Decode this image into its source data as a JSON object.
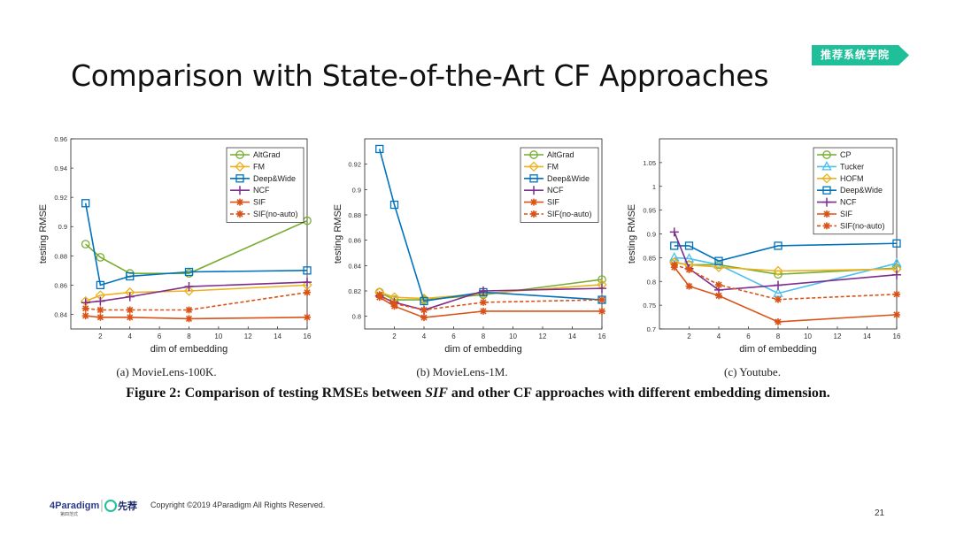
{
  "header": {
    "title": "Comparison with State-of-the-Art CF Approaches",
    "badge": "推荐系统学院",
    "badge_color": "#1fbf99"
  },
  "figure_caption": {
    "prefix": "Figure 2: Comparison of testing RMSEs between ",
    "italic": "SIF",
    "suffix": " and other CF approaches with different embedding dimension."
  },
  "footer": {
    "logo_text": "4Paradigm",
    "logo_sub": "第四范式",
    "logo2_text": "先荐",
    "copyright": "Copyright ©2019 4Paradigm All Rights Reserved.",
    "page_number": "21"
  },
  "colors": {
    "AltGrad": "#77ac30",
    "FM": "#edb120",
    "Deep&Wide": "#0072bd",
    "NCF": "#7e2f8e",
    "SIF": "#d95319",
    "SIF(no-auto)": "#d95319",
    "CP": "#77ac30",
    "Tucker": "#4dbeee",
    "HOFM": "#edb120"
  },
  "chart_data": [
    {
      "type": "line",
      "caption": "(a)  MovieLens-100K.",
      "xlabel": "dim of embedding",
      "ylabel": "testing RMSE",
      "xlim": [
        0,
        16
      ],
      "ylim": [
        0.83,
        0.96
      ],
      "xticks": [
        2,
        4,
        6,
        8,
        10,
        12,
        14,
        16
      ],
      "yticks": [
        0.84,
        0.86,
        0.88,
        0.9,
        0.92,
        0.94,
        0.96
      ],
      "ytick_labels": [
        "0.84",
        "0.86",
        "0.88",
        "0.9",
        "0.92",
        "0.94",
        "0.96"
      ],
      "legend_position": "top-right",
      "x": [
        1,
        2,
        4,
        8,
        16
      ],
      "series": [
        {
          "name": "AltGrad",
          "values": [
            0.888,
            0.879,
            0.868,
            0.868,
            0.904
          ],
          "marker": "circle",
          "dash": false
        },
        {
          "name": "FM",
          "values": [
            0.849,
            0.853,
            0.855,
            0.856,
            0.86
          ],
          "marker": "diamond",
          "dash": false
        },
        {
          "name": "Deep&Wide",
          "values": [
            0.916,
            0.86,
            0.866,
            0.869,
            0.87
          ],
          "marker": "square",
          "dash": false
        },
        {
          "name": "NCF",
          "values": [
            0.848,
            0.849,
            0.852,
            0.859,
            0.862
          ],
          "marker": "plus",
          "dash": false
        },
        {
          "name": "SIF",
          "values": [
            0.839,
            0.838,
            0.838,
            0.837,
            0.838
          ],
          "marker": "star",
          "dash": false
        },
        {
          "name": "SIF(no-auto)",
          "values": [
            0.844,
            0.843,
            0.843,
            0.843,
            0.855
          ],
          "marker": "star",
          "dash": true
        }
      ]
    },
    {
      "type": "line",
      "caption": "(b)  MovieLens-1M.",
      "xlabel": "dim of embedding",
      "ylabel": "testing RMSE",
      "xlim": [
        0,
        16
      ],
      "ylim": [
        0.79,
        0.94
      ],
      "xticks": [
        2,
        4,
        6,
        8,
        10,
        12,
        14,
        16
      ],
      "yticks": [
        0.8,
        0.82,
        0.84,
        0.86,
        0.88,
        0.9,
        0.92
      ],
      "ytick_labels": [
        "0.8",
        "0.82",
        "0.84",
        "0.86",
        "0.88",
        "0.9",
        "0.92"
      ],
      "legend_position": "top-right",
      "x": [
        1,
        2,
        4,
        8,
        16
      ],
      "series": [
        {
          "name": "AltGrad",
          "values": [
            0.819,
            0.813,
            0.813,
            0.817,
            0.829
          ],
          "marker": "circle",
          "dash": false
        },
        {
          "name": "FM",
          "values": [
            0.819,
            0.815,
            0.814,
            0.818,
            0.825
          ],
          "marker": "diamond",
          "dash": false
        },
        {
          "name": "Deep&Wide",
          "values": [
            0.932,
            0.888,
            0.812,
            0.819,
            0.813
          ],
          "marker": "square",
          "dash": false
        },
        {
          "name": "NCF",
          "values": [
            0.816,
            0.811,
            0.805,
            0.82,
            0.822
          ],
          "marker": "plus",
          "dash": false
        },
        {
          "name": "SIF",
          "values": [
            0.815,
            0.808,
            0.799,
            0.804,
            0.804
          ],
          "marker": "star",
          "dash": false
        },
        {
          "name": "SIF(no-auto)",
          "values": [
            0.817,
            0.81,
            0.805,
            0.811,
            0.813
          ],
          "marker": "star",
          "dash": true
        }
      ]
    },
    {
      "type": "line",
      "caption": "(c)  Youtube.",
      "xlabel": "dim of embedding",
      "ylabel": "testing RMSE",
      "xlim": [
        0,
        16
      ],
      "ylim": [
        0.7,
        1.1
      ],
      "xticks": [
        2,
        4,
        6,
        8,
        10,
        12,
        14,
        16
      ],
      "yticks": [
        0.7,
        0.75,
        0.8,
        0.85,
        0.9,
        0.95,
        1,
        1.05
      ],
      "ytick_labels": [
        "0.7",
        "0.75",
        "0.8",
        "0.85",
        "0.9",
        "0.95",
        "1",
        "1.05"
      ],
      "legend_position": "top-right",
      "x": [
        1,
        2,
        4,
        8,
        16
      ],
      "series": [
        {
          "name": "CP",
          "values": [
            0.84,
            0.835,
            0.835,
            0.815,
            0.828
          ],
          "marker": "circle",
          "dash": false
        },
        {
          "name": "Tucker",
          "values": [
            0.85,
            0.848,
            0.835,
            0.775,
            0.838
          ],
          "marker": "triangle",
          "dash": false
        },
        {
          "name": "HOFM",
          "values": [
            0.84,
            0.835,
            0.83,
            0.822,
            0.826
          ],
          "marker": "diamond",
          "dash": false
        },
        {
          "name": "Deep&Wide",
          "values": [
            0.875,
            0.875,
            0.843,
            0.875,
            0.88
          ],
          "marker": "square",
          "dash": false
        },
        {
          "name": "NCF",
          "values": [
            0.904,
            0.827,
            0.782,
            0.792,
            0.814
          ],
          "marker": "plus",
          "dash": false
        },
        {
          "name": "SIF",
          "values": [
            0.83,
            0.79,
            0.77,
            0.715,
            0.73
          ],
          "marker": "star",
          "dash": false
        },
        {
          "name": "SIF(no-auto)",
          "values": [
            0.835,
            0.825,
            0.793,
            0.762,
            0.773
          ],
          "marker": "star",
          "dash": true
        }
      ]
    }
  ]
}
